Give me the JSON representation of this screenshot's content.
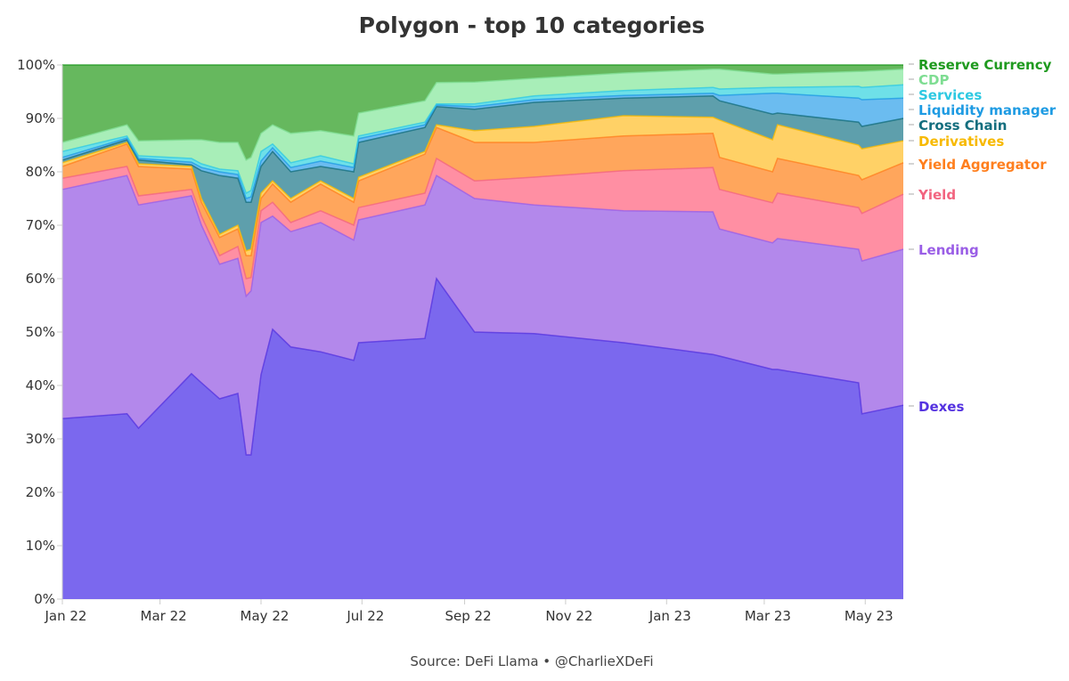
{
  "chart_data": {
    "type": "area",
    "stacked": true,
    "normalized": true,
    "title": "Polygon - top 10 categories",
    "source": "Source: DeFi Llama • @CharlieXDeFi",
    "xlabel": "",
    "ylabel": "",
    "ylim": [
      0,
      100
    ],
    "y_ticks": [
      "0%",
      "10%",
      "20%",
      "30%",
      "40%",
      "50%",
      "60%",
      "70%",
      "80%",
      "90%",
      "100%"
    ],
    "x_ticks": [
      {
        "label": "Jan 22",
        "date": "2022-01-01"
      },
      {
        "label": "Mar 22",
        "date": "2022-03-01"
      },
      {
        "label": "May 22",
        "date": "2022-05-01"
      },
      {
        "label": "Jul 22",
        "date": "2022-07-01"
      },
      {
        "label": "Sep 22",
        "date": "2022-09-01"
      },
      {
        "label": "Nov 22",
        "date": "2022-11-01"
      },
      {
        "label": "Jan 23",
        "date": "2023-01-01"
      },
      {
        "label": "Mar 23",
        "date": "2023-03-01"
      },
      {
        "label": "May 23",
        "date": "2023-05-01"
      }
    ],
    "grid": true,
    "legend": "right (direct labels)",
    "x": [
      "2022-01-01",
      "2022-02-09",
      "2022-02-16",
      "2022-03-20",
      "2022-03-26",
      "2022-04-06",
      "2022-04-17",
      "2022-04-22",
      "2022-04-25",
      "2022-05-01",
      "2022-05-08",
      "2022-05-19",
      "2022-06-06",
      "2022-06-26",
      "2022-06-29",
      "2022-08-08",
      "2022-08-15",
      "2022-09-07",
      "2022-10-13",
      "2022-12-06",
      "2023-01-29",
      "2023-02-02",
      "2023-03-06",
      "2023-03-09",
      "2023-04-27",
      "2023-04-29",
      "2023-05-24"
    ],
    "series": [
      {
        "name": "Dexes",
        "color": "#7b68ee",
        "label_color": "#5533e0",
        "values": [
          33.8,
          34.7,
          32,
          42.2,
          40.5,
          37.5,
          38.5,
          27,
          27,
          42,
          50.5,
          47.2,
          46.3,
          44.7,
          48,
          48.8,
          60,
          50,
          49.7,
          48,
          45.8,
          45.5,
          43,
          43,
          40.5,
          34.7,
          36.3
        ]
      },
      {
        "name": "Lending",
        "color": "#b388eb",
        "label_color": "#9a5ee6",
        "values": [
          42.9,
          44.6,
          41.8,
          33.3,
          29.5,
          25.2,
          25.3,
          29.7,
          30.7,
          28.5,
          21.2,
          21.6,
          24.2,
          22.5,
          23,
          25,
          19.3,
          25,
          24.1,
          24.7,
          26.7,
          23.8,
          23.7,
          24.5,
          25,
          28.6,
          29.2
        ]
      },
      {
        "name": "Yield",
        "color": "#ff8fa3",
        "label_color": "#f2647f",
        "values": [
          2.1,
          1.7,
          1.7,
          1.2,
          1.7,
          1.6,
          2.2,
          3.3,
          2.5,
          2.2,
          2.6,
          1.7,
          2.2,
          2.8,
          2.3,
          2.2,
          3.2,
          3.3,
          5.2,
          7.5,
          8.3,
          7.4,
          7.5,
          8.5,
          7.8,
          8.9,
          10.3
        ]
      },
      {
        "name": "Yield Aggregator",
        "color": "#ffa65c",
        "label_color": "#ff7f1e",
        "values": [
          2.2,
          4.2,
          5.5,
          3.8,
          2.6,
          3.4,
          3.3,
          4.3,
          4.1,
          2.3,
          3.4,
          3.8,
          5,
          4.3,
          5,
          7.3,
          5.8,
          7.2,
          6.5,
          6.5,
          6.4,
          6,
          5.8,
          6.5,
          6,
          6.3,
          5.9
        ]
      },
      {
        "name": "Derivatives",
        "color": "#ffd166",
        "label_color": "#f7b900",
        "values": [
          0.7,
          0.3,
          0.5,
          0.5,
          0.7,
          0.6,
          0.7,
          0.9,
          1.2,
          1,
          0.6,
          0.7,
          0.6,
          0.7,
          0.7,
          0.5,
          0.5,
          2.2,
          3,
          3.8,
          3,
          7,
          6,
          6.3,
          5.7,
          5.8,
          4.1
        ]
      },
      {
        "name": "Cross Chain",
        "color": "#5e9fac",
        "label_color": "#146e7e",
        "values": [
          0.5,
          0.5,
          0.7,
          0.3,
          5.2,
          11,
          8.8,
          9.1,
          8.8,
          5,
          5.5,
          5,
          2.7,
          5,
          6.5,
          4.5,
          3.4,
          4,
          4.5,
          3.3,
          4,
          3.6,
          4.8,
          2.2,
          4.3,
          4.2,
          4.2
        ]
      },
      {
        "name": "Liquidity manager",
        "color": "#6bbcf0",
        "label_color": "#1e9be3",
        "values": [
          0.5,
          0.3,
          0.3,
          0.5,
          0.6,
          0.7,
          0.7,
          0.7,
          1,
          1,
          0.7,
          0.8,
          1,
          0.8,
          0.7,
          0.5,
          0.3,
          0.5,
          0.5,
          0.5,
          0.5,
          1,
          3.9,
          3.7,
          4.5,
          5,
          3.8
        ]
      },
      {
        "name": "Services",
        "color": "#6ee0e8",
        "label_color": "#2ec9e2",
        "values": [
          1.1,
          0.4,
          0.5,
          0.7,
          0.7,
          0.5,
          0.7,
          1,
          1.2,
          1.8,
          0.7,
          0.9,
          1,
          0.7,
          0.5,
          0.5,
          0.2,
          0.5,
          0.7,
          0.9,
          1.1,
          1.2,
          1.1,
          1.1,
          2.2,
          2.3,
          2.5
        ]
      },
      {
        "name": "CDP",
        "color": "#a8eeb8",
        "label_color": "#7edd92",
        "values": [
          1.7,
          2.1,
          2.8,
          3.5,
          4.5,
          5,
          5.3,
          6.2,
          6.2,
          3.4,
          3.6,
          5.5,
          4.7,
          5.2,
          4.3,
          4,
          4,
          4.1,
          3.3,
          3.3,
          3.4,
          3.7,
          2.5,
          2.5,
          2.8,
          3,
          2.9
        ]
      },
      {
        "name": "Reserve Currency",
        "color": "#66b85e",
        "label_color": "#1f9a1f",
        "values": [
          14.5,
          11.2,
          14.2,
          14,
          14,
          14.5,
          14.5,
          17.8,
          17.3,
          12.8,
          11.2,
          12.8,
          12.3,
          13.3,
          9,
          6.7,
          3.3,
          3.2,
          2.5,
          1.5,
          0.8,
          0.8,
          1.7,
          1.7,
          1.2,
          1.2,
          0.8
        ]
      }
    ]
  }
}
